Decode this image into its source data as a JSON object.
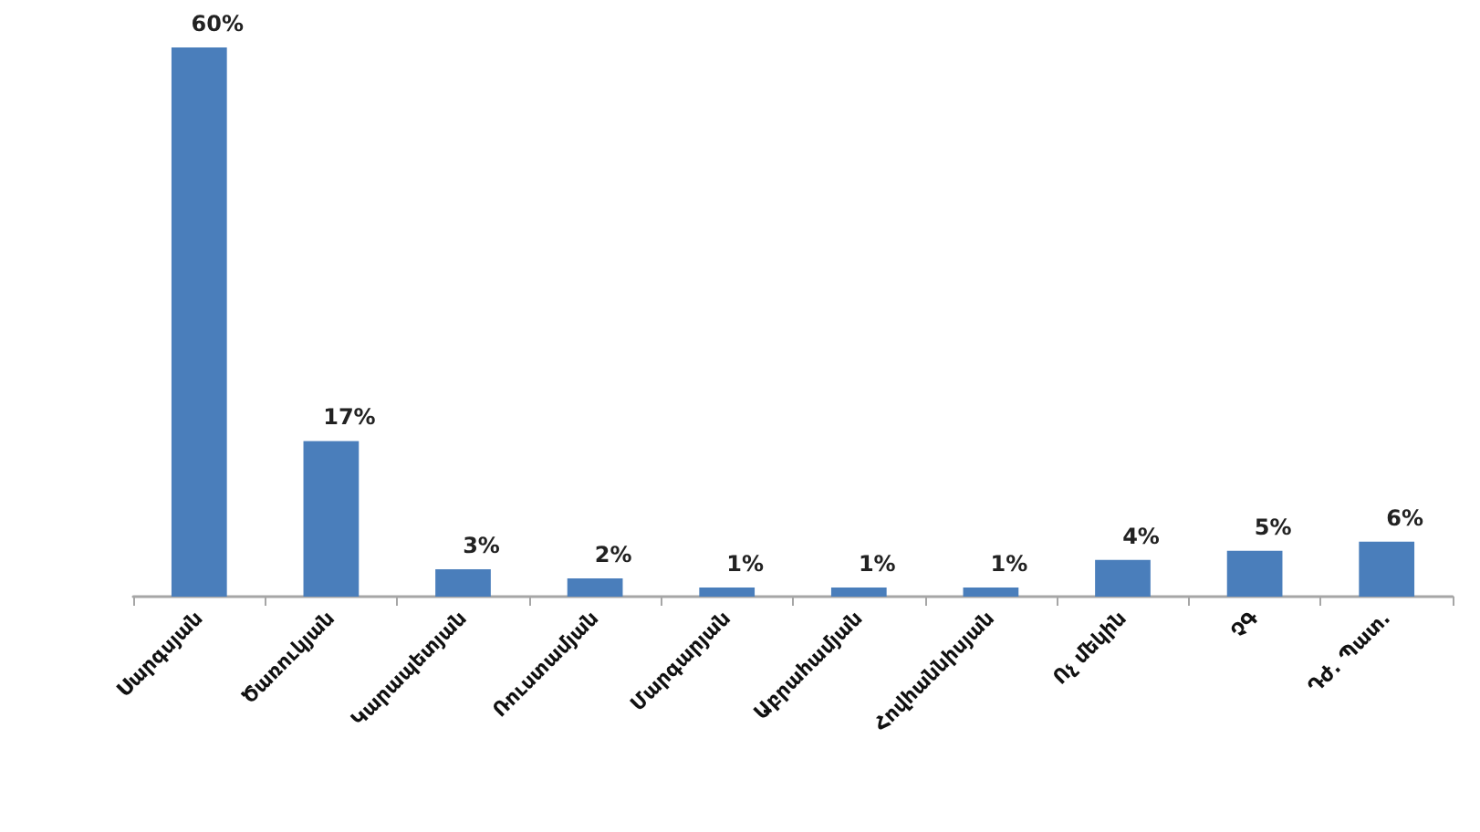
{
  "chart_data": {
    "type": "bar",
    "categories": [
      "Սարգսյան",
      "Ծառուկյան",
      "Կարապետյան",
      "Ռուստամյան",
      "Մարգարյան",
      "Աբրահամյան",
      "Հովհաննիսյան",
      "Ոչ մեկին",
      "ՉԳ",
      "Դժ. Պատ."
    ],
    "values": [
      60,
      17,
      3,
      2,
      1,
      1,
      1,
      4,
      5,
      6
    ],
    "value_labels": [
      "60%",
      "17%",
      "3%",
      "2%",
      "1%",
      "1%",
      "1%",
      "4%",
      "5%",
      "6%"
    ],
    "color": "#4a7ebb"
  }
}
